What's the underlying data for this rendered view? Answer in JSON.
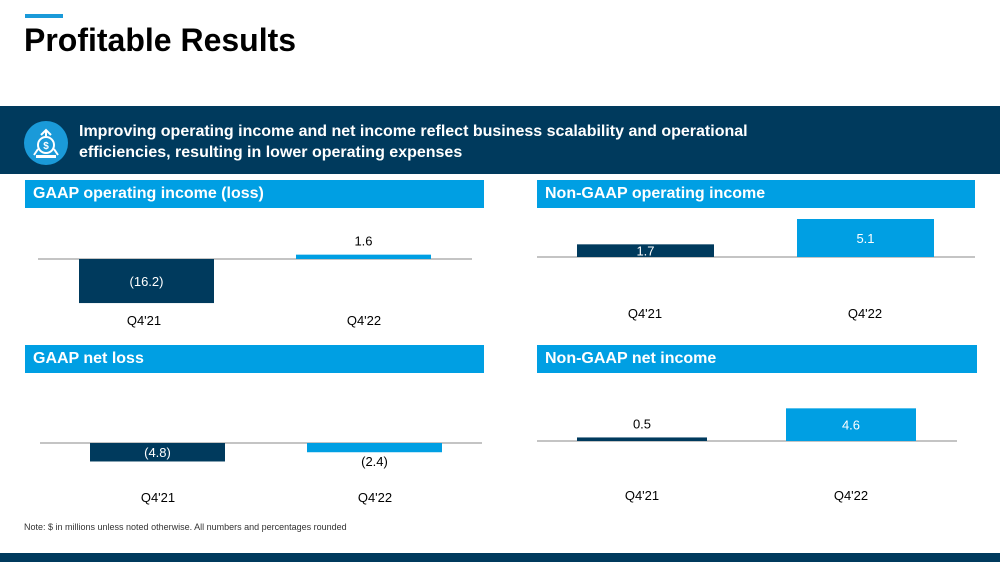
{
  "page": {
    "title": "Profitable Results",
    "banner_text": "Improving operating income and net income reflect business scalability and operational efficiencies, resulting in lower operating expenses",
    "banner_icon": "growth-money-icon",
    "note": "Note: $ in millions unless noted otherwise. All numbers and percentages rounded"
  },
  "colors": {
    "navy": "#003a5d",
    "blue": "#009fe3",
    "light_blue": "#1a9ad9",
    "axis": "#888888"
  },
  "chart_data": [
    {
      "type": "bar",
      "title": "GAAP operating income (loss)",
      "categories": [
        "Q4'21",
        "Q4'22"
      ],
      "values": [
        -16.2,
        1.6
      ],
      "labels": [
        "(16.2)",
        "1.6"
      ],
      "ylim": [
        -16.2,
        1.6
      ]
    },
    {
      "type": "bar",
      "title": "Non-GAAP operating income",
      "categories": [
        "Q4'21",
        "Q4'22"
      ],
      "values": [
        1.7,
        5.1
      ],
      "labels": [
        "1.7",
        "5.1"
      ],
      "ylim": [
        0,
        5.1
      ]
    },
    {
      "type": "bar",
      "title": "GAAP net loss",
      "categories": [
        "Q4'21",
        "Q4'22"
      ],
      "values": [
        -4.8,
        -2.4
      ],
      "labels": [
        "(4.8)",
        "(2.4)"
      ],
      "ylim": [
        -4.8,
        0
      ]
    },
    {
      "type": "bar",
      "title": "Non-GAAP net income",
      "categories": [
        "Q4'21",
        "Q4'22"
      ],
      "values": [
        0.5,
        4.6
      ],
      "labels": [
        "0.5",
        "4.6"
      ],
      "ylim": [
        0,
        4.6
      ]
    }
  ]
}
